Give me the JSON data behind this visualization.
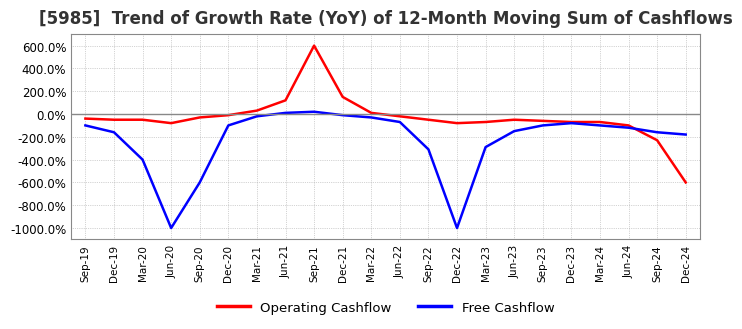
{
  "title": "[5985]  Trend of Growth Rate (YoY) of 12-Month Moving Sum of Cashflows",
  "title_fontsize": 12,
  "background_color": "#ffffff",
  "grid_color": "#aaaaaa",
  "ylim": [
    -1100,
    700
  ],
  "yticks": [
    -1000,
    -800,
    -600,
    -400,
    -200,
    0,
    200,
    400,
    600
  ],
  "ytick_labels": [
    "-1000.0%",
    "-800.0%",
    "-600.0%",
    "-400.0%",
    "-200.0%",
    "0.0%",
    "200.0%",
    "400.0%",
    "600.0%"
  ],
  "x_labels": [
    "Sep-19",
    "Dec-19",
    "Mar-20",
    "Jun-20",
    "Sep-20",
    "Dec-20",
    "Mar-21",
    "Jun-21",
    "Sep-21",
    "Dec-21",
    "Mar-22",
    "Jun-22",
    "Sep-22",
    "Dec-22",
    "Mar-23",
    "Jun-23",
    "Sep-23",
    "Dec-23",
    "Mar-24",
    "Jun-24",
    "Sep-24",
    "Dec-24"
  ],
  "operating_cashflow": [
    -40,
    -50,
    -50,
    -80,
    -30,
    -10,
    30,
    120,
    600,
    150,
    10,
    -20,
    -50,
    -80,
    -70,
    -50,
    -60,
    -70,
    -70,
    -100,
    -230,
    -600
  ],
  "free_cashflow": [
    -100,
    -160,
    -400,
    -1000,
    -600,
    -100,
    -20,
    10,
    20,
    -10,
    -30,
    -70,
    -310,
    -1000,
    -290,
    -150,
    -100,
    -80,
    -100,
    -120,
    -160,
    -180
  ],
  "operating_color": "#ff0000",
  "free_color": "#0000ff",
  "legend_labels": [
    "Operating Cashflow",
    "Free Cashflow"
  ]
}
